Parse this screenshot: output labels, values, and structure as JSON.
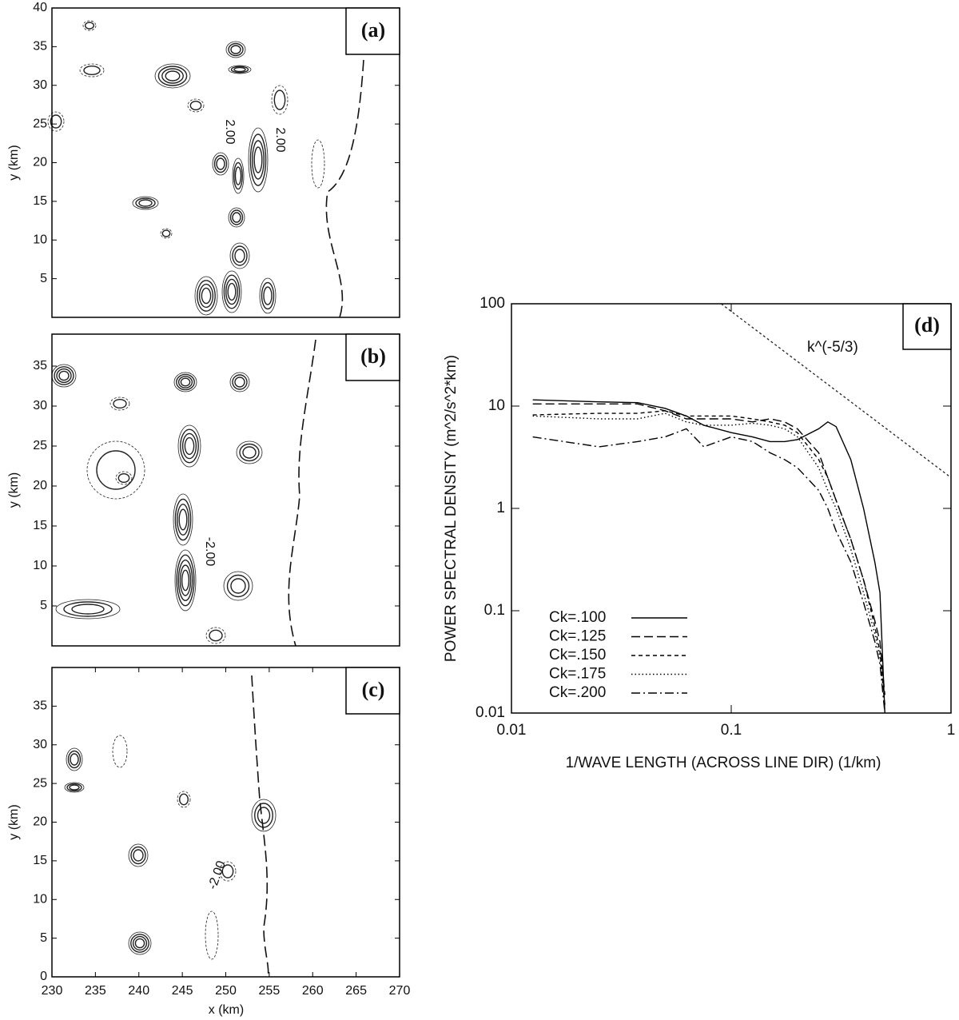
{
  "chart_data": [
    {
      "type": "contour",
      "panel_label": "(a)",
      "ylabel": "y (km)",
      "xlim": [
        230,
        270
      ],
      "ylim": [
        0,
        40
      ],
      "yticks": [
        5,
        10,
        15,
        20,
        25,
        30,
        35,
        40
      ],
      "contour_labels": [
        "2.00",
        "2.00"
      ]
    },
    {
      "type": "contour",
      "panel_label": "(b)",
      "ylabel": "y (km)",
      "xlim": [
        230,
        270
      ],
      "ylim": [
        0,
        39
      ],
      "yticks": [
        5,
        10,
        15,
        20,
        25,
        30,
        35
      ],
      "contour_labels": [
        "-2.00"
      ]
    },
    {
      "type": "contour",
      "panel_label": "(c)",
      "ylabel": "y (km)",
      "xlabel": "x (km)",
      "xlim": [
        230,
        270
      ],
      "ylim": [
        0,
        40
      ],
      "yticks": [
        0,
        5,
        10,
        15,
        20,
        25,
        30,
        35
      ],
      "xticks": [
        230,
        235,
        240,
        245,
        250,
        255,
        260,
        265,
        270
      ],
      "contour_labels": [
        "-2.00"
      ]
    },
    {
      "type": "line",
      "panel_label": "(d)",
      "xlabel": "1/WAVE LENGTH (ACROSS LINE DIR) (1/km)",
      "ylabel": "POWER SPECTRAL DENSITY (m^2/s^2*km)",
      "log_x": true,
      "log_y": true,
      "xlim": [
        0.01,
        1
      ],
      "ylim": [
        0.01,
        100
      ],
      "xticks": [
        0.01,
        0.1,
        1
      ],
      "yticks": [
        0.01,
        0.1,
        1,
        10,
        100
      ],
      "x": [
        0.0125,
        0.025,
        0.0375,
        0.05,
        0.0625,
        0.075,
        0.1,
        0.125,
        0.15,
        0.175,
        0.2,
        0.25,
        0.275,
        0.3,
        0.35,
        0.4,
        0.45,
        0.475,
        0.5
      ],
      "series": [
        {
          "name": "Ck=.100",
          "color": "#000000",
          "dash": "solid",
          "values": [
            11.5,
            11,
            10.8,
            9.5,
            8,
            6.5,
            5.5,
            5,
            4.5,
            4.5,
            4.7,
            6,
            7,
            6.3,
            3,
            1,
            0.3,
            0.15,
            0.01
          ]
        },
        {
          "name": "Ck=.125",
          "color": "#000000",
          "dash": "dashed",
          "values": [
            10.5,
            10.5,
            10.5,
            9,
            7.5,
            7.5,
            7.5,
            7,
            7.5,
            7,
            6,
            3.5,
            2,
            1.2,
            0.5,
            0.2,
            0.08,
            0.05,
            0.015
          ]
        },
        {
          "name": "Ck=.150",
          "color": "#000000",
          "dash": "short-dashed",
          "values": [
            8.2,
            8.5,
            8.5,
            9,
            8,
            8,
            8,
            7.5,
            7,
            6.5,
            5.5,
            3,
            2,
            1.2,
            0.5,
            0.2,
            0.07,
            0.04,
            0.012
          ]
        },
        {
          "name": "Ck=.175",
          "color": "#000000",
          "dash": "dotted",
          "values": [
            8,
            7.5,
            7.5,
            8.5,
            7,
            6.5,
            6.5,
            6.8,
            6.5,
            6,
            5,
            2.5,
            1.5,
            1,
            0.4,
            0.15,
            0.06,
            0.035,
            0.012
          ]
        },
        {
          "name": "Ck=.200",
          "color": "#000000",
          "dash": "dash-dot",
          "values": [
            5,
            4,
            4.5,
            5,
            6,
            4,
            5,
            4.5,
            3.5,
            3,
            2.5,
            1.5,
            1,
            0.6,
            0.3,
            0.12,
            0.05,
            0.03,
            0.01
          ]
        }
      ],
      "reference": {
        "x": [
          0.09,
          1
        ],
        "values": [
          100,
          2
        ]
      },
      "annotation": "k^(-5/3)"
    }
  ]
}
